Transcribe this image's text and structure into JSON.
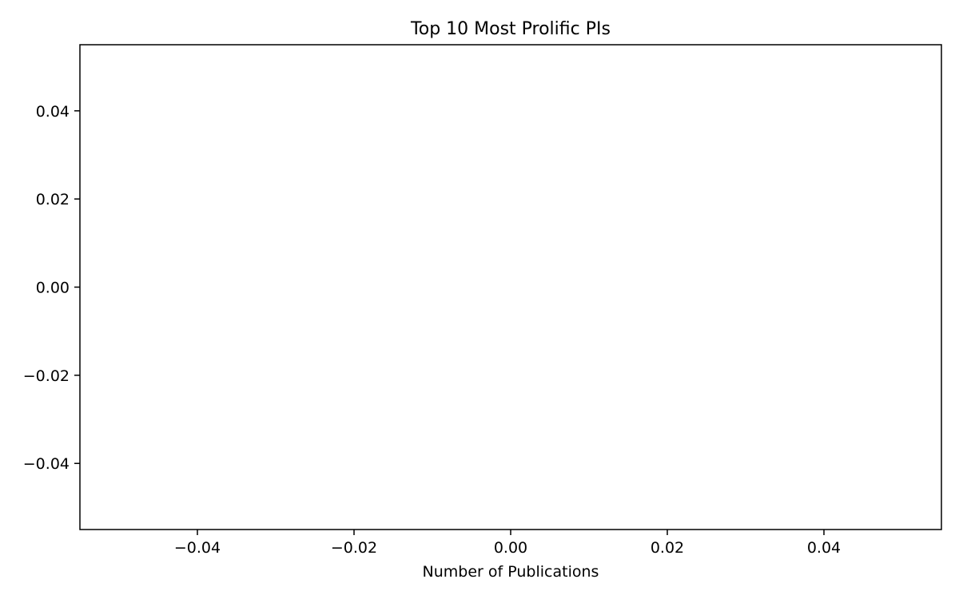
{
  "chart_data": {
    "type": "bar",
    "orientation": "horizontal",
    "title": "Top 10 Most Prolific PIs",
    "xlabel": "Number of Publications",
    "ylabel": "",
    "categories": [],
    "values": [],
    "xlim": [
      -0.055,
      0.055
    ],
    "ylim": [
      -0.055,
      0.055
    ],
    "xticks": [
      -0.04,
      -0.02,
      0.0,
      0.02,
      0.04
    ],
    "xtick_labels": [
      "−0.04",
      "−0.02",
      "0.00",
      "0.02",
      "0.04"
    ],
    "yticks": [
      0.04,
      0.02,
      0.0,
      -0.02,
      -0.04
    ],
    "ytick_labels": [
      "0.04",
      "0.02",
      "0.00",
      "−0.02",
      "−0.04"
    ],
    "grid": false,
    "legend": "none"
  }
}
